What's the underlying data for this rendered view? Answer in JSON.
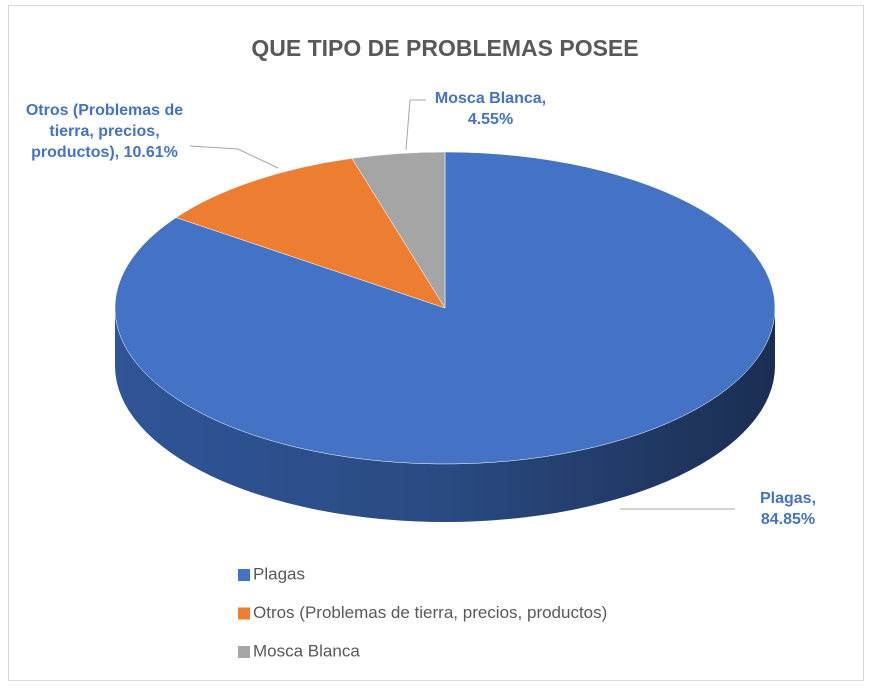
{
  "chart_data": {
    "type": "pie",
    "title": "QUE TIPO DE PROBLEMAS POSEE",
    "categories": [
      "Plagas",
      "Otros (Problemas de tierra, precios, productos)",
      "Mosca Blanca"
    ],
    "values": [
      84.85,
      10.61,
      4.55
    ],
    "value_labels": [
      "Plagas, 84.85%",
      "Otros (Problemas de tierra, precios, productos), 10.61%",
      "Mosca Blanca, 4.55%"
    ],
    "colors": [
      "#4472c4",
      "#ed7d31",
      "#a5a5a5"
    ],
    "legend": "bottom"
  }
}
